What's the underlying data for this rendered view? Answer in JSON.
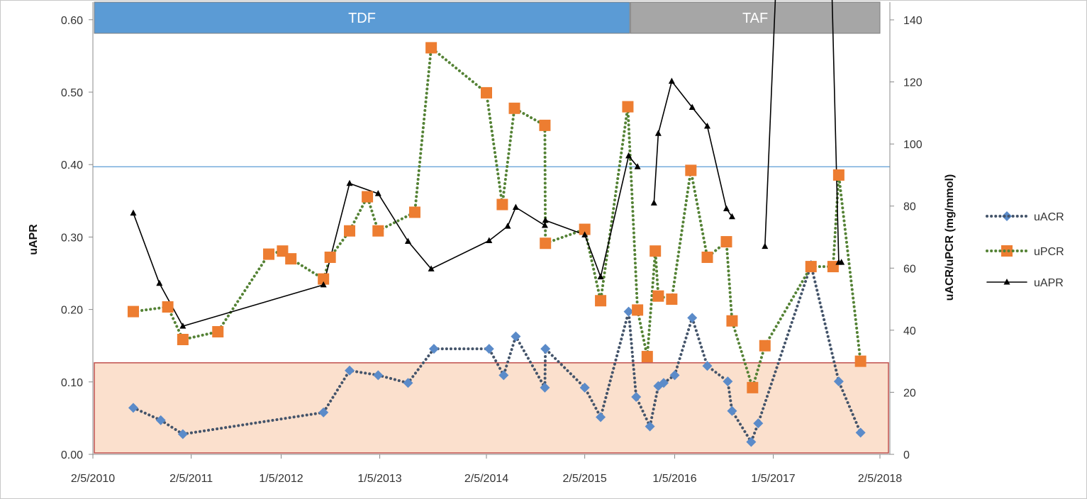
{
  "chart_data": {
    "type": "line",
    "title": "",
    "x_axis": {
      "type": "date",
      "min": "2010-02-05",
      "max": "2018-02-05",
      "tick_dates": [
        "2010-02-05",
        "2011-02-05",
        "2012-01-05",
        "2013-01-05",
        "2014-02-05",
        "2015-02-05",
        "2016-01-05",
        "2017-01-05",
        "2018-02-05"
      ],
      "tick_labels": [
        "2/5/2010",
        "2/5/2011",
        "1/5/2012",
        "1/5/2013",
        "2/5/2014",
        "2/5/2015",
        "1/5/2016",
        "1/5/2017",
        "2/5/2018"
      ]
    },
    "y_left": {
      "label": "uAPR",
      "range": [
        0,
        0.6
      ],
      "ticks": [
        0,
        0.1,
        0.2,
        0.3,
        0.4,
        0.5,
        0.6
      ],
      "tick_labels": [
        "0.00",
        "0.10",
        "0.20",
        "0.30",
        "0.40",
        "0.50",
        "0.60"
      ]
    },
    "y_right": {
      "label": "uACR/uPCR (mg/mmol)",
      "range": [
        0,
        140
      ],
      "ticks": [
        0,
        20,
        40,
        60,
        80,
        100,
        120,
        140
      ],
      "tick_labels": [
        "0",
        "20",
        "40",
        "60",
        "80",
        "100",
        "120",
        "140"
      ]
    },
    "treatment_bands": [
      {
        "label": "TDF",
        "start": "2010-02-05",
        "end": "2015-07-22",
        "color": "#5b9bd5"
      },
      {
        "label": "TAF",
        "start": "2015-07-25",
        "end": "2018-02-05",
        "color": "#a6a6a6"
      }
    ],
    "reference_line": {
      "axis": "left",
      "value": 0.397,
      "color": "#5b9bd5"
    },
    "shaded_region": {
      "axis": "right",
      "from": 0,
      "to": 29.5,
      "fill": "#fbe0cd",
      "stroke": "#c0504d"
    },
    "legend_position": "right",
    "series": [
      {
        "name": "uACR",
        "axis": "right",
        "style": "dotted",
        "marker": "diamond",
        "color": "#5b8bc9",
        "line_color": "#44546a",
        "points": [
          [
            "2010-07-05",
            15.0
          ],
          [
            "2010-10-15",
            11.0
          ],
          [
            "2011-01-05",
            6.5
          ],
          [
            "2012-06-10",
            13.5
          ],
          [
            "2012-09-15",
            27.0
          ],
          [
            "2012-12-30",
            25.5
          ],
          [
            "2013-04-20",
            23.0
          ],
          [
            "2013-07-25",
            34.0
          ],
          [
            "2014-02-15",
            34.0
          ],
          [
            "2014-04-10",
            25.5
          ],
          [
            "2014-05-25",
            38.0
          ],
          [
            "2014-09-10",
            21.5
          ],
          [
            "2014-09-12",
            34.0
          ],
          [
            "2015-02-05",
            21.5
          ],
          [
            "2015-04-05",
            12.0
          ],
          [
            "2015-07-18",
            46.0
          ],
          [
            "2015-08-15",
            18.5
          ],
          [
            "2015-10-05",
            9.0
          ],
          [
            "2015-11-05",
            22.0
          ],
          [
            "2015-11-25",
            23.0
          ],
          [
            "2016-01-05",
            25.5
          ],
          [
            "2016-03-10",
            44.0
          ],
          [
            "2016-05-05",
            28.5
          ],
          [
            "2016-07-20",
            23.5
          ],
          [
            "2016-08-05",
            14.0
          ],
          [
            "2016-10-15",
            4.0
          ],
          [
            "2016-11-10",
            10.0
          ],
          [
            "2017-05-25",
            61.0
          ],
          [
            "2017-09-05",
            23.5
          ],
          [
            "2017-11-25",
            7.0
          ]
        ]
      },
      {
        "name": "uPCR",
        "axis": "right",
        "style": "dotted",
        "marker": "square",
        "color": "#ed7d31",
        "line_color": "#548235",
        "points": [
          [
            "2010-07-05",
            46.0
          ],
          [
            "2010-11-10",
            47.5
          ],
          [
            "2011-01-05",
            37.0
          ],
          [
            "2011-05-15",
            39.5
          ],
          [
            "2011-11-20",
            64.5
          ],
          [
            "2012-01-10",
            65.5
          ],
          [
            "2012-02-10",
            63.0
          ],
          [
            "2012-06-10",
            56.5
          ],
          [
            "2012-07-05",
            63.5
          ],
          [
            "2012-09-15",
            72.0
          ],
          [
            "2012-11-20",
            83.0
          ],
          [
            "2012-12-30",
            72.0
          ],
          [
            "2013-05-15",
            78.0
          ],
          [
            "2013-07-15",
            131.0
          ],
          [
            "2014-02-05",
            116.5
          ],
          [
            "2014-04-05",
            80.5
          ],
          [
            "2014-05-20",
            111.5
          ],
          [
            "2014-09-10",
            106.0
          ],
          [
            "2014-09-12",
            68.0
          ],
          [
            "2015-02-05",
            72.5
          ],
          [
            "2015-04-05",
            49.5
          ],
          [
            "2015-07-15",
            112.0
          ],
          [
            "2015-08-20",
            46.5
          ],
          [
            "2015-09-25",
            31.5
          ],
          [
            "2015-10-25",
            65.5
          ],
          [
            "2015-11-05",
            51.0
          ],
          [
            "2015-12-25",
            50.0
          ],
          [
            "2016-03-05",
            91.5
          ],
          [
            "2016-05-05",
            63.5
          ],
          [
            "2016-07-15",
            68.5
          ],
          [
            "2016-08-05",
            43.0
          ],
          [
            "2016-10-20",
            21.5
          ],
          [
            "2016-12-05",
            35.0
          ],
          [
            "2017-05-25",
            60.5
          ],
          [
            "2017-08-15",
            60.5
          ],
          [
            "2017-09-05",
            90.0
          ],
          [
            "2017-11-25",
            30.0
          ]
        ]
      },
      {
        "name": "uAPR",
        "axis": "left",
        "style": "solid",
        "marker": "triangle",
        "color": "#000000",
        "line_color": "#000000",
        "segments": [
          [
            [
              "2010-07-05",
              0.333
            ],
            [
              "2010-10-10",
              0.236
            ],
            [
              "2011-01-05",
              0.177
            ],
            [
              "2012-06-10",
              0.234
            ],
            [
              "2012-09-15",
              0.374
            ],
            [
              "2012-12-30",
              0.36
            ],
            [
              "2013-04-20",
              0.294
            ],
            [
              "2013-07-15",
              0.256
            ],
            [
              "2014-02-15",
              0.295
            ],
            [
              "2014-04-25",
              0.315
            ],
            [
              "2014-05-25",
              0.341
            ],
            [
              "2014-09-10",
              0.316
            ],
            [
              "2014-09-12",
              0.323
            ],
            [
              "2015-02-05",
              0.303
            ],
            [
              "2015-04-05",
              0.245
            ],
            [
              "2015-07-18",
              0.412
            ],
            [
              "2015-08-20",
              0.397
            ]
          ],
          [
            [
              "2015-10-20",
              0.347
            ],
            [
              "2015-11-05",
              0.443
            ],
            [
              "2015-12-25",
              0.515
            ],
            [
              "2016-03-10",
              0.479
            ],
            [
              "2016-05-05",
              0.453
            ],
            [
              "2016-07-15",
              0.339
            ],
            [
              "2016-08-05",
              0.328
            ]
          ],
          [
            [
              "2016-12-05",
              0.287
            ],
            [
              "2017-01-15",
              0.65
            ],
            [
              "2017-08-10",
              0.65
            ],
            [
              "2017-09-05",
              0.265
            ],
            [
              "2017-09-15",
              0.265
            ]
          ]
        ]
      }
    ]
  }
}
